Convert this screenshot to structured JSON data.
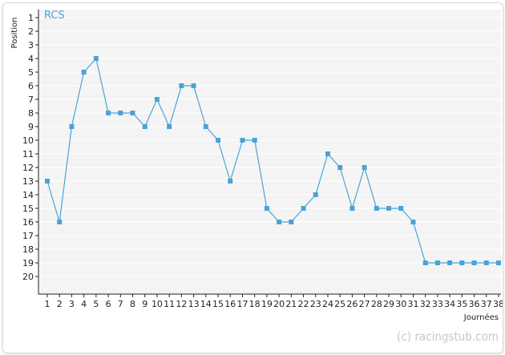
{
  "chart_data": {
    "type": "line",
    "series_label": "RCS",
    "ylabel": "Position",
    "xlabel": "Journées",
    "watermark": "(c) racingstub.com",
    "y_axis": {
      "min": 1,
      "max": 20,
      "inverted": true,
      "ticks": [
        1,
        2,
        3,
        4,
        5,
        6,
        7,
        8,
        9,
        10,
        11,
        12,
        13,
        14,
        15,
        16,
        17,
        18,
        19,
        20
      ]
    },
    "x": [
      1,
      2,
      3,
      4,
      5,
      6,
      7,
      8,
      9,
      10,
      11,
      12,
      13,
      14,
      15,
      16,
      17,
      18,
      19,
      20,
      21,
      22,
      23,
      24,
      25,
      26,
      27,
      28,
      29,
      30,
      31,
      32,
      33,
      34,
      35,
      36,
      37,
      38
    ],
    "series": [
      {
        "values": [
          13,
          16,
          9,
          5,
          4,
          8,
          8,
          8,
          9,
          7,
          9,
          6,
          6,
          9,
          10,
          13,
          10,
          10,
          15,
          16,
          16,
          15,
          14,
          11,
          12,
          15,
          12,
          15,
          15,
          15,
          16,
          19,
          19,
          19,
          19,
          19,
          19,
          19
        ]
      }
    ],
    "grid": "horizontal",
    "colors": {
      "line": "#4aa3d6",
      "marker": "#4aa3d6",
      "plot_bg": "#f4f4f4",
      "grid": "#ffffff"
    }
  }
}
